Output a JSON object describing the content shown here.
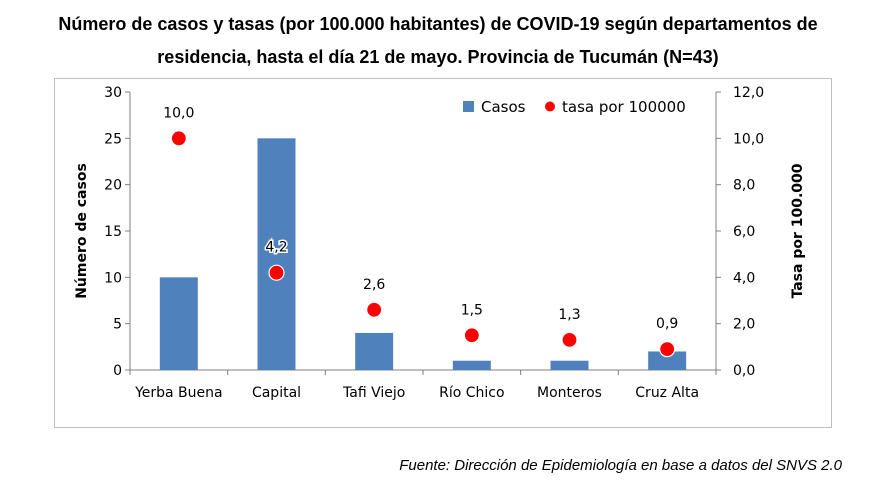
{
  "title_line1": "Número de casos y tasas (por 100.000 habitantes) de COVID-19 según departamentos de",
  "title_line2": "residencia, hasta el día 21 de mayo. Provincia de Tucumán (N=43)",
  "source": "Fuente: Dirección de Epidemiología en base a datos del SNVS 2.0",
  "chart_data": {
    "type": "bar",
    "categories": [
      "Yerba Buena",
      "Capital",
      "Tafi Viejo",
      "Río Chico",
      "Monteros",
      "Cruz Alta"
    ],
    "series": [
      {
        "name": "Casos",
        "type": "bar",
        "axis": "left",
        "color": "#4f81bd",
        "values": [
          10,
          25,
          4,
          1,
          1,
          2
        ]
      },
      {
        "name": "tasa por 100000",
        "type": "scatter",
        "axis": "right",
        "color": "#ff0000",
        "values": [
          10.0,
          4.2,
          2.6,
          1.5,
          1.3,
          0.9
        ],
        "labels": [
          "10,0",
          "4,2",
          "2,6",
          "1,5",
          "1,3",
          "0,9"
        ]
      }
    ],
    "ylabel": "Número de casos",
    "y2label": "Tasa por 100.000",
    "ylim": [
      0,
      30
    ],
    "y2lim": [
      0,
      12
    ],
    "yticks": [
      "0",
      "5",
      "10",
      "15",
      "20",
      "25",
      "30"
    ],
    "y2ticks": [
      "0,0",
      "2,0",
      "4,0",
      "6,0",
      "8,0",
      "10,0",
      "12,0"
    ],
    "grid": false,
    "legend_position": "top-right"
  }
}
